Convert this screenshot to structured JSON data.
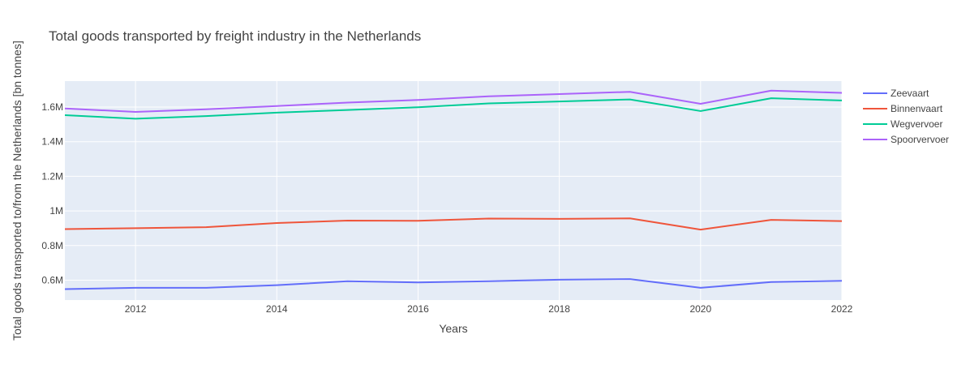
{
  "chart_data": {
    "type": "line",
    "title": "Total goods transported by freight industry in the Netherlands",
    "xlabel": "Years",
    "ylabel": "Total goods transported to/from the Netherlands [bn tonnes]",
    "x": [
      2011,
      2012,
      2013,
      2014,
      2015,
      2016,
      2017,
      2018,
      2019,
      2020,
      2021,
      2022
    ],
    "xlim": [
      2011,
      2022
    ],
    "ylim": [
      485000,
      1750000
    ],
    "x_ticks": [
      2012,
      2014,
      2016,
      2018,
      2020,
      2022
    ],
    "x_tick_labels": [
      "2012",
      "2014",
      "2016",
      "2018",
      "2020",
      "2022"
    ],
    "y_ticks": [
      600000,
      800000,
      1000000,
      1200000,
      1400000,
      1600000
    ],
    "y_tick_labels": [
      "0.6M",
      "0.8M",
      "1M",
      "1.2M",
      "1.4M",
      "1.6M"
    ],
    "grid": true,
    "legend_position": "top-right",
    "series": [
      {
        "name": "Zeevaart",
        "color": "#636efa",
        "values": [
          548000,
          556000,
          556000,
          571000,
          594000,
          587000,
          594000,
          603000,
          606000,
          556000,
          589000,
          596000
        ]
      },
      {
        "name": "Binnenvaart",
        "color": "#ef553b",
        "values": [
          895000,
          900000,
          906000,
          930000,
          944000,
          943000,
          956000,
          954000,
          957000,
          892000,
          948000,
          941000
        ]
      },
      {
        "name": "Wegvervoer",
        "color": "#00cc96",
        "values": [
          1553000,
          1533000,
          1548000,
          1568000,
          1583000,
          1599000,
          1621000,
          1632000,
          1644000,
          1577000,
          1651000,
          1638000
        ]
      },
      {
        "name": "Spoorvervoer",
        "color": "#ab63fa",
        "values": [
          1592000,
          1572000,
          1587000,
          1606000,
          1626000,
          1641000,
          1662000,
          1675000,
          1688000,
          1619000,
          1695000,
          1682000
        ]
      }
    ]
  }
}
